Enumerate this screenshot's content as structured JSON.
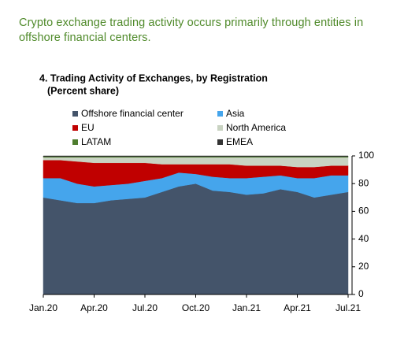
{
  "note": "Crypto exchange trading activity occurs primarily through entities in offshore financial centers.",
  "chart_data": {
    "type": "stacked-area",
    "title": "4. Trading Activity of Exchanges, by Registration",
    "subtitle": "(Percent share)",
    "categories": [
      "Jan.20",
      null,
      null,
      "Apr.20",
      null,
      null,
      "Jul.20",
      null,
      null,
      "Oct.20",
      null,
      null,
      "Jan.21",
      null,
      null,
      "Apr.21",
      null,
      null,
      "Jul.21"
    ],
    "series": [
      {
        "name": "Offshore financial center",
        "color": "#44546a",
        "values": [
          70,
          68,
          66,
          66,
          68,
          69,
          70,
          74,
          78,
          80,
          75,
          74,
          72,
          73,
          76,
          74,
          70,
          72,
          74
        ]
      },
      {
        "name": "Asia",
        "color": "#45a5ec",
        "values": [
          14,
          16,
          14,
          12,
          11,
          11,
          12,
          10,
          10,
          7,
          10,
          10,
          12,
          12,
          10,
          10,
          14,
          14,
          12
        ]
      },
      {
        "name": "EU",
        "color": "#c00000",
        "values": [
          13,
          13,
          16,
          17,
          16,
          15,
          13,
          10,
          6,
          7,
          9,
          10,
          9,
          8,
          7,
          8,
          8,
          7,
          7
        ]
      },
      {
        "name": "North America",
        "color": "#c9d3c2",
        "values": [
          2,
          2,
          3,
          4,
          4,
          4,
          4,
          5,
          5,
          5,
          5,
          5,
          6,
          6,
          6,
          7,
          7,
          6,
          6
        ]
      },
      {
        "name": "LATAM",
        "color": "#4e7d2e",
        "values": [
          0.5,
          0.5,
          0.5,
          0.5,
          0.5,
          0.5,
          0.5,
          0.5,
          0.5,
          0.5,
          0.5,
          0.5,
          0.5,
          0.5,
          0.5,
          0.5,
          0.5,
          0.5,
          0.5
        ]
      },
      {
        "name": "EMEA",
        "color": "#333333",
        "values": [
          0.5,
          0.5,
          0.5,
          0.5,
          0.5,
          0.5,
          0.5,
          0.5,
          0.5,
          0.5,
          0.5,
          0.5,
          0.5,
          0.5,
          0.5,
          0.5,
          0.5,
          0.5,
          0.5
        ]
      }
    ],
    "ylim": [
      0,
      100
    ],
    "yticks": [
      0,
      20,
      40,
      60,
      80,
      100
    ],
    "y_axis_side": "right",
    "grid": false
  }
}
